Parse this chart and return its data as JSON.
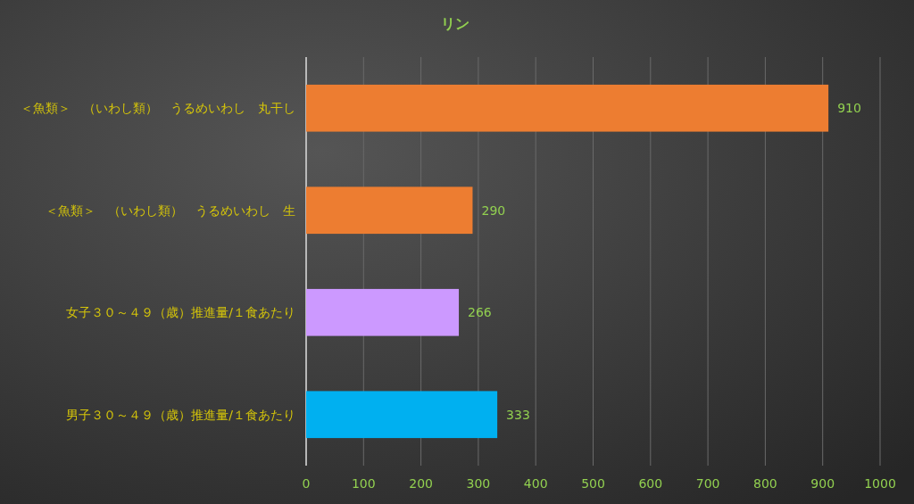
{
  "chart_data": {
    "type": "bar",
    "orientation": "horizontal",
    "title": "リン",
    "categories": [
      "＜魚類＞　（いわし類）　うるめいわし　丸干し",
      "＜魚類＞　（いわし類）　うるめいわし　生",
      "女子３０～４９（歳）推進量/１食あたり",
      "男子３０～４９（歳）推進量/１食あたり"
    ],
    "values": [
      910,
      290,
      266,
      333
    ],
    "colors": [
      "#ed7d31",
      "#ed7d31",
      "#cc99ff",
      "#00b0f0"
    ],
    "xlim": [
      0,
      1000
    ],
    "xticks": [
      0,
      100,
      200,
      300,
      400,
      500,
      600,
      700,
      800,
      900,
      1000
    ],
    "grid": "x",
    "data_labels": true
  }
}
